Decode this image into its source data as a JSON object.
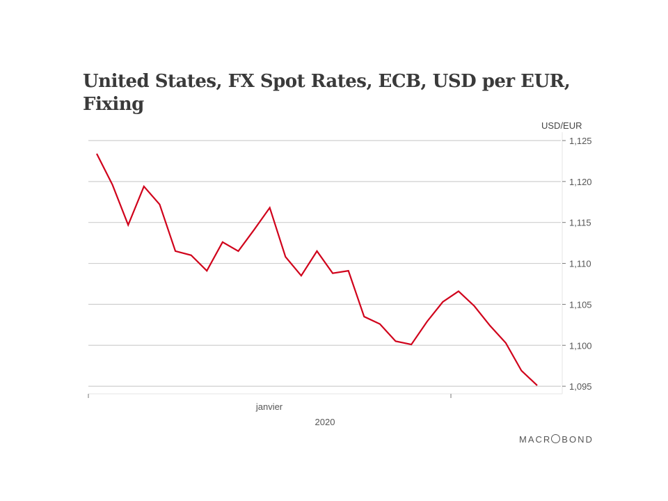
{
  "chart_data": {
    "type": "line",
    "title": "United States, FX Spot Rates, ECB, USD per EUR, Fixing",
    "ylabel": "USD/EUR",
    "xlabel": "2020",
    "x_tick_labels": [
      "janvier"
    ],
    "x_year_label": "2020",
    "ylim": [
      1.094,
      1.125
    ],
    "y_ticks": [
      1.125,
      1.12,
      1.115,
      1.11,
      1.105,
      1.1,
      1.095
    ],
    "y_tick_labels": [
      "1,125",
      "1,120",
      "1,115",
      "1,110",
      "1,105",
      "1,100",
      "1,095"
    ],
    "grid": true,
    "y_axis_side": "right",
    "series": [
      {
        "name": "USD per EUR, Fixing",
        "color": "#d0021b",
        "values": [
          1.1234,
          1.1196,
          1.1147,
          1.1194,
          1.1172,
          1.1115,
          1.111,
          1.1091,
          1.1126,
          1.1115,
          1.1141,
          1.1168,
          1.1108,
          1.1085,
          1.1115,
          1.1088,
          1.1091,
          1.1035,
          1.1026,
          1.1005,
          1.1001,
          1.1029,
          1.1053,
          1.1066,
          1.1048,
          1.1024,
          1.1003,
          1.0969,
          1.0951
        ]
      }
    ]
  },
  "brand": "MACRBOND",
  "brand_parts": [
    "MACR",
    "BOND"
  ]
}
